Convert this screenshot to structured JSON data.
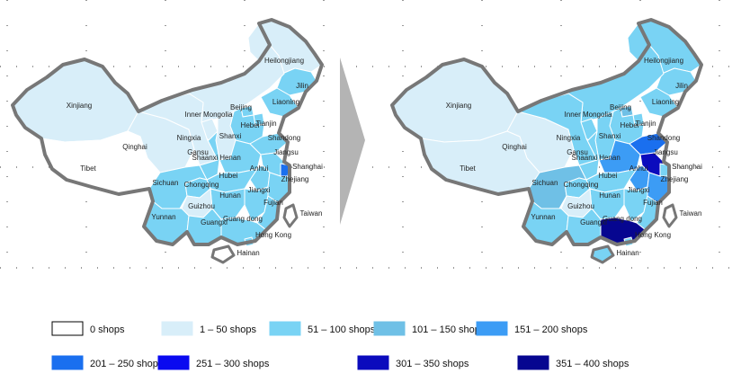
{
  "legend": [
    {
      "label": "0 shops",
      "color": "#ffffff"
    },
    {
      "label": "1 – 50 shops",
      "color": "#d8eef9"
    },
    {
      "label": "51 – 100 shops",
      "color": "#79d3f4"
    },
    {
      "label": "101 – 150 shops",
      "color": "#6fc0e6"
    },
    {
      "label": "151 – 200 shops",
      "color": "#3c9cf5"
    },
    {
      "label": "201 – 250 shops",
      "color": "#1a6fef"
    },
    {
      "label": "251 – 300 shops",
      "color": "#0a0af0"
    },
    {
      "label": "301 – 350 shops",
      "color": "#0b0bbd"
    },
    {
      "label": "351 – 400 shops",
      "color": "#060690"
    }
  ],
  "maps": [
    {
      "provinces": [
        {
          "name": "Heilongjiang",
          "color": "#d8eef9"
        },
        {
          "name": "Jilin",
          "color": "#79d3f4"
        },
        {
          "name": "Liaoning",
          "color": "#79d3f4"
        },
        {
          "name": "Xinjiang",
          "color": "#d8eef9"
        },
        {
          "name": "Inner Mongolia",
          "color": "#d8eef9"
        },
        {
          "name": "Beijing",
          "color": "#79d3f4"
        },
        {
          "name": "Tianjin",
          "color": "#79d3f4"
        },
        {
          "name": "Hebei",
          "color": "#79d3f4"
        },
        {
          "name": "Ningxia",
          "color": "#d8eef9"
        },
        {
          "name": "Shanxi",
          "color": "#d8eef9"
        },
        {
          "name": "Shandong",
          "color": "#79d3f4"
        },
        {
          "name": "Qinghai",
          "color": "#d8eef9"
        },
        {
          "name": "Gansu",
          "color": "#d8eef9"
        },
        {
          "name": "Jiangsu",
          "color": "#79d3f4"
        },
        {
          "name": "Shaanxi",
          "color": "#79d3f4"
        },
        {
          "name": "Henan",
          "color": "#79d3f4"
        },
        {
          "name": "Anhui",
          "color": "#79d3f4"
        },
        {
          "name": "Shanghai",
          "color": "#1a6fef"
        },
        {
          "name": "Tibet",
          "color": "#ffffff"
        },
        {
          "name": "Hubei",
          "color": "#79d3f4"
        },
        {
          "name": "Sichuan",
          "color": "#79d3f4"
        },
        {
          "name": "Chongqing",
          "color": "#79d3f4"
        },
        {
          "name": "Zhejiang",
          "color": "#79d3f4"
        },
        {
          "name": "Hunan",
          "color": "#79d3f4"
        },
        {
          "name": "Jiangxi",
          "color": "#79d3f4"
        },
        {
          "name": "Fujian",
          "color": "#79d3f4"
        },
        {
          "name": "Guizhou",
          "color": "#d8eef9"
        },
        {
          "name": "Yunnan",
          "color": "#79d3f4"
        },
        {
          "name": "Guangxi",
          "color": "#79d3f4"
        },
        {
          "name": "Guangdong",
          "color": "#79d3f4"
        },
        {
          "name": "Taiwan",
          "color": "#ffffff"
        },
        {
          "name": "Hong Kong",
          "color": "#79d3f4"
        },
        {
          "name": "Hainan",
          "color": "#ffffff"
        }
      ],
      "labels": {
        "Heilongjiang": "Heilongjiang",
        "Jilin": "Jilin",
        "Liaoning": "Liaoning",
        "Xinjiang": "Xinjiang",
        "Inner Mongolia": "Inner Mongolia",
        "Beijing": "Beijing",
        "Tianjin": "Tianjin",
        "Hebei": "Hebei",
        "Ningxia": "Ningxia",
        "Shanxi": "Shanxi",
        "Shandong": "Shandong",
        "Qinghai": "Qinghai",
        "Gansu": "Gansu",
        "Jiangsu": "Jiangsu",
        "Shaanxi": "Shaanxi",
        "Henan": "Henan",
        "Anhui": "Anhui",
        "Shanghai": "Shanghai",
        "Tibet": "Tibet",
        "Hubei": "Hubei",
        "Sichuan": "Sichuan",
        "Chongqing": "Chongqing",
        "Zhejiang": "Zhejiang",
        "Hunan": "Hunan",
        "Jiangxi": "Jiangxi",
        "Fujian": "Fujian",
        "Guizhou": "Guizhou",
        "Yunnan": "Yunnan",
        "Guangxi": "Guangxi",
        "Guangdong": "Guang dong",
        "Taiwan": "Taiwan",
        "Hong Kong": "Hong Kong",
        "Hainan": "Hainan"
      }
    },
    {
      "provinces": [
        {
          "name": "Heilongjiang",
          "color": "#79d3f4"
        },
        {
          "name": "Jilin",
          "color": "#79d3f4"
        },
        {
          "name": "Liaoning",
          "color": "#79d3f4"
        },
        {
          "name": "Xinjiang",
          "color": "#d8eef9"
        },
        {
          "name": "Inner Mongolia",
          "color": "#79d3f4"
        },
        {
          "name": "Beijing",
          "color": "#6fc0e6"
        },
        {
          "name": "Tianjin",
          "color": "#79d3f4"
        },
        {
          "name": "Hebei",
          "color": "#79d3f4"
        },
        {
          "name": "Ningxia",
          "color": "#79d3f4"
        },
        {
          "name": "Shanxi",
          "color": "#79d3f4"
        },
        {
          "name": "Shandong",
          "color": "#1a6fef"
        },
        {
          "name": "Qinghai",
          "color": "#d8eef9"
        },
        {
          "name": "Gansu",
          "color": "#79d3f4"
        },
        {
          "name": "Jiangsu",
          "color": "#0b0bbd"
        },
        {
          "name": "Shaanxi",
          "color": "#79d3f4"
        },
        {
          "name": "Henan",
          "color": "#3c9cf5"
        },
        {
          "name": "Anhui",
          "color": "#3c9cf5"
        },
        {
          "name": "Shanghai",
          "color": "#79d3f4"
        },
        {
          "name": "Tibet",
          "color": "#d8eef9"
        },
        {
          "name": "Hubei",
          "color": "#79d3f4"
        },
        {
          "name": "Sichuan",
          "color": "#6fc0e6"
        },
        {
          "name": "Chongqing",
          "color": "#79d3f4"
        },
        {
          "name": "Zhejiang",
          "color": "#3c9cf5"
        },
        {
          "name": "Hunan",
          "color": "#79d3f4"
        },
        {
          "name": "Jiangxi",
          "color": "#79d3f4"
        },
        {
          "name": "Fujian",
          "color": "#79d3f4"
        },
        {
          "name": "Guizhou",
          "color": "#d8eef9"
        },
        {
          "name": "Yunnan",
          "color": "#79d3f4"
        },
        {
          "name": "Guangxi",
          "color": "#79d3f4"
        },
        {
          "name": "Guangdong",
          "color": "#060690"
        },
        {
          "name": "Taiwan",
          "color": "#ffffff"
        },
        {
          "name": "Hong Kong",
          "color": "#79d3f4"
        },
        {
          "name": "Hainan",
          "color": "#79d3f4"
        }
      ],
      "labels": {
        "Heilongjiang": "Heilongjiang",
        "Jilin": "Jilin",
        "Liaoning": "Liaoning",
        "Xinjiang": "Xinjiang",
        "Inner Mongolia": "Inner Mongolia",
        "Beijing": "Beijing",
        "Tianjin": "Tianjin",
        "Hebei": "Hebei",
        "Ningxia": "Ningxia",
        "Shanxi": "Shanxi",
        "Shandong": "Shandong",
        "Qinghai": "Qinghai",
        "Gansu": "Gansu",
        "Jiangsu": "Jiangsu",
        "Shaanxi": "Shaanxi",
        "Henan": "Henan",
        "Anhui": "Anhui",
        "Shanghai": "Shanghai",
        "Tibet": "Tibet",
        "Hubei": "Hubei",
        "Sichuan": "Sichuan",
        "Chongqing": "Chongqing",
        "Zhejiang": "Zhejiang",
        "Hunan": "Hunan",
        "Jiangxi": "Jiangxi",
        "Fujian": "Fujian",
        "Guizhou": "Guizhou",
        "Yunnan": "Yunnan",
        "Guangxi": "Guangxi",
        "Guangdong": "Guang dong",
        "Taiwan": "Taiwan",
        "Hong Kong": "Hong Kong",
        "Hainan": "Hainan"
      }
    }
  ],
  "colors": {
    "outline": "#777777",
    "divider": "#ffffff",
    "arrow": "#b4b4b4",
    "grid_dots": "#333333"
  }
}
